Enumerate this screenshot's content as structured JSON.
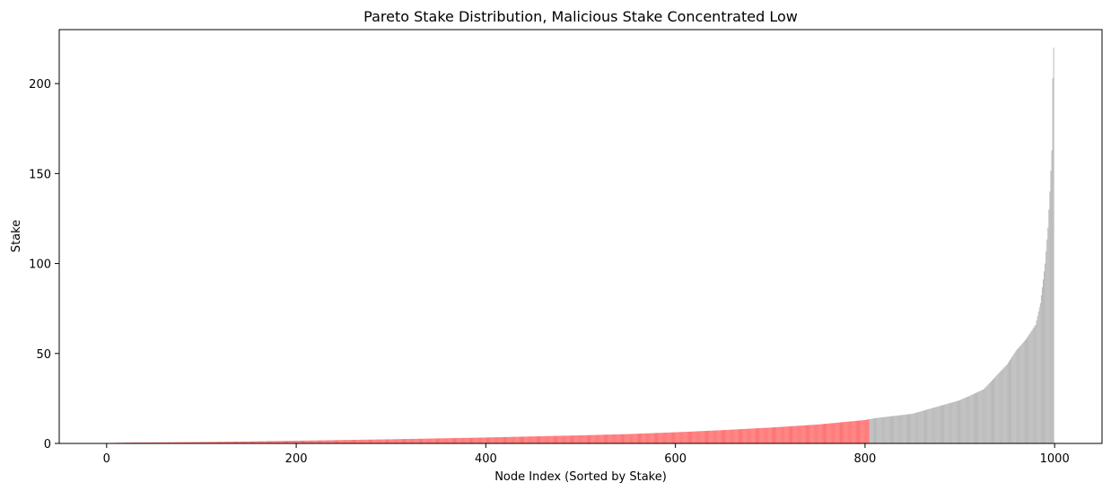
{
  "chart_data": {
    "type": "bar",
    "title": "Pareto Stake Distribution, Malicious Stake Concentrated Low",
    "xlabel": "Node Index (Sorted by Stake)",
    "ylabel": "Stake",
    "xlim": [
      -50,
      1050
    ],
    "ylim": [
      0,
      230
    ],
    "xticks": [
      0,
      200,
      400,
      600,
      800,
      1000
    ],
    "yticks": [
      0,
      50,
      100,
      150,
      200
    ],
    "grid": false,
    "legend": "none",
    "n_nodes": 1000,
    "malicious_count": 805,
    "colors": {
      "malicious": "#ff6666",
      "honest": "#b2b2b2"
    },
    "stake_curve": {
      "x": [
        0,
        25,
        50,
        100,
        150,
        200,
        250,
        300,
        350,
        400,
        450,
        500,
        550,
        600,
        650,
        700,
        750,
        800,
        810,
        850,
        900,
        925,
        950,
        960,
        970,
        980,
        985,
        990,
        993,
        995,
        997,
        998,
        999
      ],
      "y": [
        0.2,
        0.5,
        0.6,
        0.8,
        1.1,
        1.5,
        1.9,
        2.3,
        2.8,
        3.3,
        3.9,
        4.5,
        5.2,
        6.2,
        7.4,
        8.8,
        10.5,
        13.0,
        14.0,
        16.5,
        24.0,
        30.0,
        44.0,
        52.0,
        58.0,
        66.0,
        78.0,
        100.0,
        120.0,
        140.0,
        163.0,
        203.0,
        220.0
      ]
    }
  }
}
